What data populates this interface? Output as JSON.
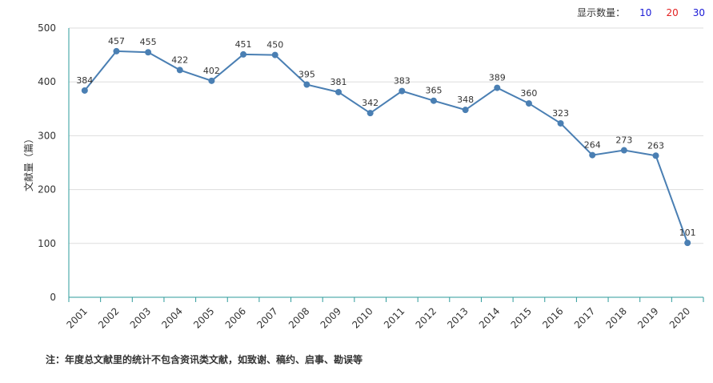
{
  "display_count": {
    "label": "显示数量：",
    "options": [
      {
        "value": "10",
        "color": "#1a1ad6"
      },
      {
        "value": "20",
        "color": "#e32020"
      },
      {
        "value": "30",
        "color": "#1a1ad6"
      }
    ]
  },
  "footnote": "注：年度总文献里的统计不包含资讯类文献，如致谢、稿约、启事、勘误等",
  "colors": {
    "line": "#4a7fb3",
    "axis": "#2e9b9b",
    "grid": "#dddddd"
  },
  "chart_data": {
    "type": "line",
    "title": "",
    "xlabel": "",
    "ylabel": "文献量（篇）",
    "ylim": [
      0,
      500
    ],
    "yticks": [
      0,
      100,
      200,
      300,
      400,
      500
    ],
    "categories": [
      "2001",
      "2002",
      "2003",
      "2004",
      "2005",
      "2006",
      "2007",
      "2008",
      "2009",
      "2010",
      "2011",
      "2012",
      "2013",
      "2014",
      "2015",
      "2016",
      "2017",
      "2018",
      "2019",
      "2020"
    ],
    "series": [
      {
        "values": [
          384,
          457,
          455,
          422,
          402,
          451,
          450,
          395,
          381,
          342,
          383,
          365,
          348,
          389,
          360,
          323,
          264,
          273,
          263,
          101
        ]
      }
    ],
    "grid": true,
    "data_labels": true
  }
}
